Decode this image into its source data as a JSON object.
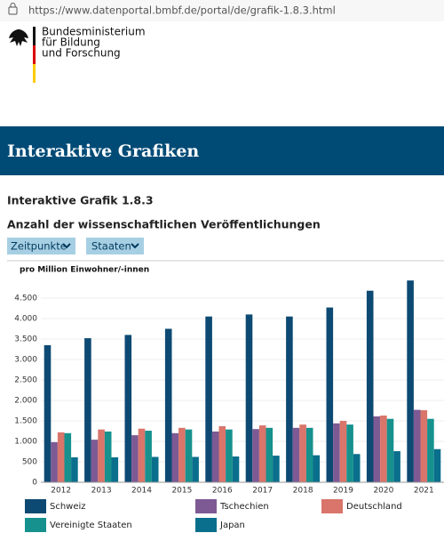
{
  "browser": {
    "url": "https://www.datenportal.bmbf.de/portal/de/grafik-1.8.3.html"
  },
  "header": {
    "logo_text": [
      "Bundesministerium",
      "für Bildung",
      "und Forschung"
    ]
  },
  "banner": {
    "title": "Interaktive Grafiken"
  },
  "section": {
    "title": "Interaktive Grafik 1.8.3",
    "subtitle": "Anzahl der wissenschaftlichen Veröffentlichungen",
    "buttons": [
      "Zeitpunkte",
      "Staaten"
    ]
  },
  "chart_data": {
    "type": "bar",
    "ylabel": "pro Million Einwohner/-innen",
    "categories": [
      "2012",
      "2013",
      "2014",
      "2015",
      "2016",
      "2017",
      "2018",
      "2019",
      "2020",
      "2021"
    ],
    "series": [
      {
        "name": "Schweiz",
        "color": "#0d4a73",
        "values": [
          3350,
          3520,
          3600,
          3750,
          4050,
          4100,
          4050,
          4270,
          4680,
          4930
        ]
      },
      {
        "name": "Tschechien",
        "color": "#7d5a94",
        "values": [
          980,
          1040,
          1150,
          1200,
          1240,
          1300,
          1330,
          1440,
          1610,
          1770
        ]
      },
      {
        "name": "Deutschland",
        "color": "#d9756a",
        "values": [
          1220,
          1290,
          1310,
          1330,
          1370,
          1390,
          1410,
          1500,
          1630,
          1760
        ]
      },
      {
        "name": "Vereinigte Staaten",
        "color": "#16918e",
        "values": [
          1200,
          1240,
          1260,
          1290,
          1290,
          1330,
          1330,
          1410,
          1550,
          1550
        ]
      },
      {
        "name": "Japan",
        "color": "#0a6f8c",
        "values": [
          610,
          610,
          620,
          620,
          630,
          650,
          660,
          690,
          760,
          810
        ]
      }
    ],
    "ylim": [
      0,
      5000
    ],
    "yticks": [
      0,
      500,
      {
        "value": 1000,
        "label": "1.000"
      },
      {
        "value": 1500,
        "label": "1.500"
      },
      {
        "value": 2000,
        "label": "2.000"
      },
      {
        "value": 2500,
        "label": "2.500"
      },
      {
        "value": 3000,
        "label": "3.000"
      },
      {
        "value": 3500,
        "label": "3.500"
      },
      {
        "value": 4000,
        "label": "4.000"
      },
      {
        "value": 4500,
        "label": "4.500"
      }
    ],
    "grid": true
  }
}
